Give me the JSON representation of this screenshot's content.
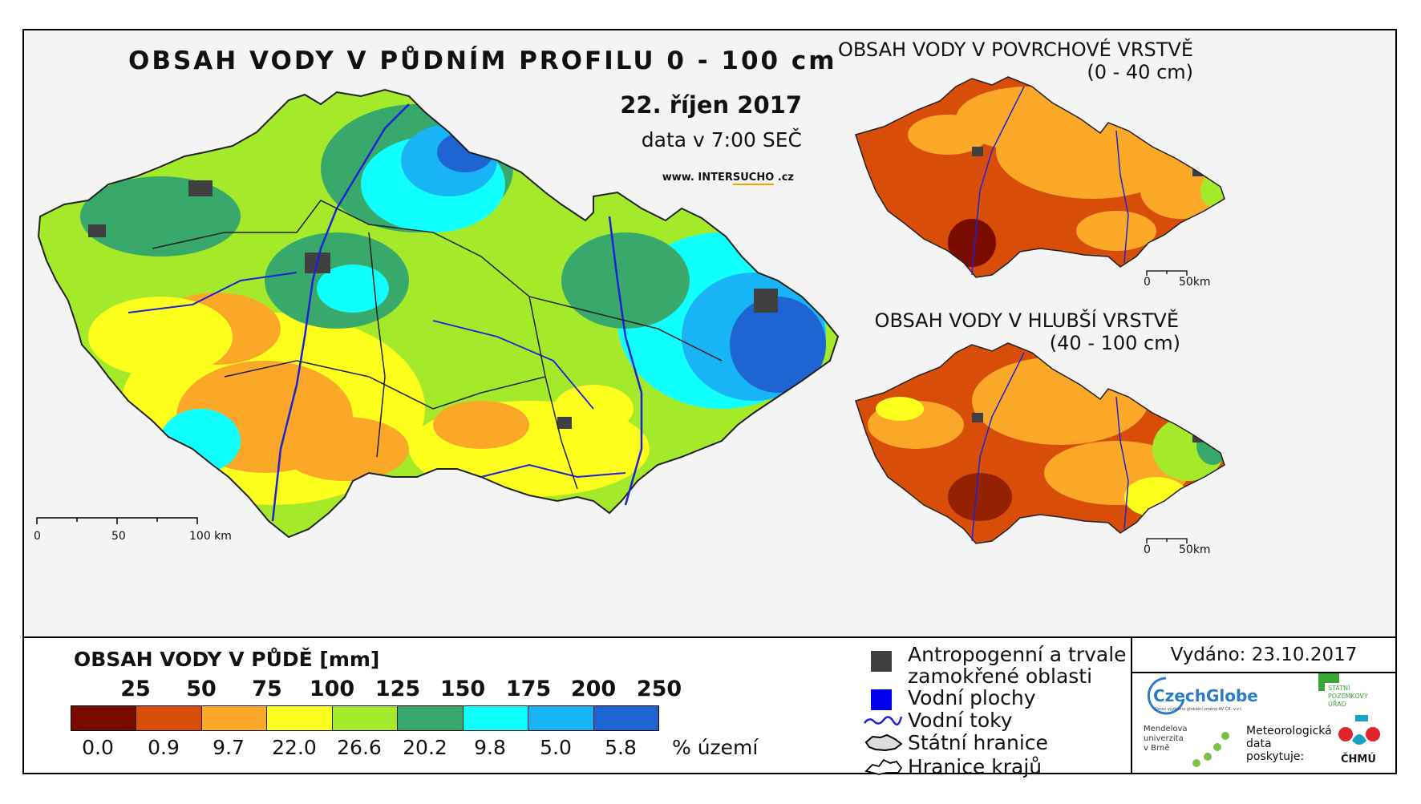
{
  "main_map": {
    "title": "OBSAH VODY V PŮDNÍM PROFILU 0 - 100 cm",
    "date": "22. říjen 2017",
    "time": "data v 7:00 SEČ",
    "website_prefix": "www. INTER",
    "website_highlight": "SUCHO",
    "website_suffix": " .cz",
    "scale": [
      "0",
      "50",
      "100 km"
    ]
  },
  "surface_map": {
    "title": "OBSAH VODY V POVRCHOVÉ VRSTVĚ",
    "range": "(0 - 40 cm)",
    "scale": [
      "0",
      "50km"
    ]
  },
  "deep_map": {
    "title": "OBSAH VODY V HLUBŠÍ VRSTVĚ",
    "range": "(40 - 100 cm)",
    "scale": [
      "0",
      "50km"
    ]
  },
  "legend": {
    "heading": "OBSAH VODY V PŮDĚ [mm]",
    "thresholds": [
      "25",
      "50",
      "75",
      "100",
      "125",
      "150",
      "175",
      "200",
      "250"
    ],
    "classes": [
      {
        "color": "#7b0d00",
        "percent": "0.0"
      },
      {
        "color": "#d84e09",
        "percent": "0.9"
      },
      {
        "color": "#fba828",
        "percent": "9.7"
      },
      {
        "color": "#ffff1e",
        "percent": "22.0"
      },
      {
        "color": "#a5ea2a",
        "percent": "26.6"
      },
      {
        "color": "#38a96a",
        "percent": "20.2"
      },
      {
        "color": "#10ffff",
        "percent": "9.8"
      },
      {
        "color": "#19b4f5",
        "percent": "5.0"
      },
      {
        "color": "#1e64d2",
        "percent": "5.8"
      }
    ],
    "percent_unit": "% území",
    "symbols": [
      {
        "icon": "anthropogenic-square-icon",
        "color": "#404040",
        "label_line1": "Antropogenní a trvale",
        "label_line2": "zamokřené oblasti"
      },
      {
        "icon": "water-body-square-icon",
        "color": "#0000ee",
        "label_line1": "Vodní plochy"
      },
      {
        "icon": "river-line-icon",
        "color": "#1d22d9",
        "label_line1": "Vodní toky"
      },
      {
        "icon": "state-border-icon",
        "color": "#000000",
        "label_line1": "Státní hranice"
      },
      {
        "icon": "region-border-icon",
        "color": "#000000",
        "label_line1": "Hranice krajů"
      }
    ]
  },
  "issue": {
    "issued": "Vydáno: 23.10.2017"
  },
  "logos": {
    "czechglobe": "CzechGlobe",
    "czechglobe_sub": "Ústav výzkumu globální změny AV ČR, v.v.i.",
    "spu_line1": "STÁTNÍ",
    "spu_line2": "POZEMKOVÝ",
    "spu_line3": "ÚŘAD",
    "mendel_line1": "Mendelova",
    "mendel_line2": "univerzita",
    "mendel_line3": "v Brně",
    "met_line1": "Meteorologická",
    "met_line2": "data",
    "met_line3": "poskytuje:",
    "chmu": "ČHMÚ"
  }
}
